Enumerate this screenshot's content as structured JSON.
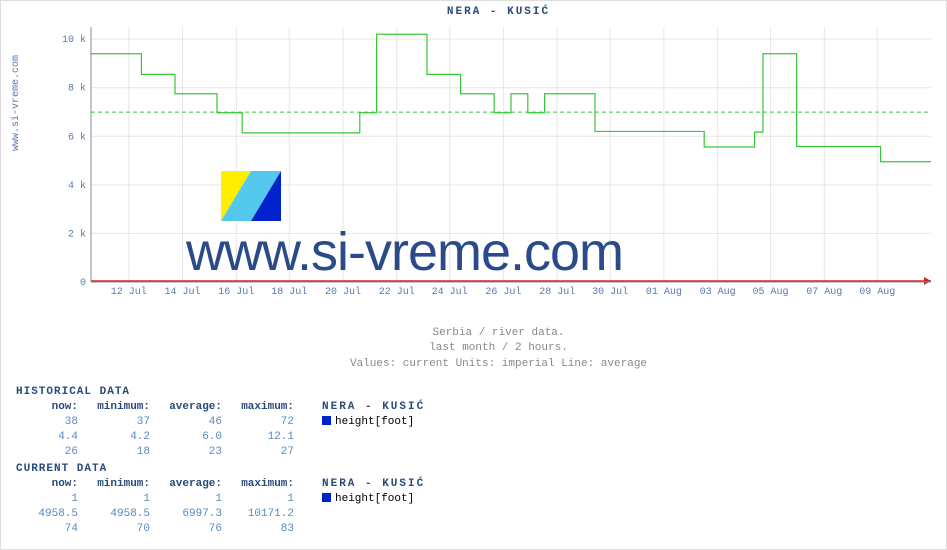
{
  "vertical_label": "www.si-vreme.com",
  "chart": {
    "title": "NERA -  KUSIĆ",
    "type": "line",
    "ylim": [
      0,
      10500
    ],
    "yticks": [
      0,
      2000,
      4000,
      6000,
      8000,
      10000
    ],
    "ytick_labels": [
      "0",
      "2 k",
      "4 k",
      "6 k",
      "8 k",
      "10 k"
    ],
    "xtick_labels": [
      "12 Jul",
      "14 Jul",
      "16 Jul",
      "18 Jul",
      "20 Jul",
      "22 Jul",
      "24 Jul",
      "26 Jul",
      "28 Jul",
      "30 Jul",
      "01 Aug",
      "03 Aug",
      "05 Aug",
      "07 Aug",
      "09 Aug"
    ],
    "xtick_positions_pct": [
      4.5,
      10.9,
      17.3,
      23.6,
      30,
      36.4,
      42.7,
      49.1,
      55.5,
      61.8,
      68.2,
      74.6,
      80.9,
      87.3,
      93.6
    ],
    "average_line_value": 6997,
    "average_line_color": "#39c639",
    "series_color": "#39c639",
    "red_line_color": "#c62828",
    "grid_color": "#e6e6e6",
    "axis_label_color": "#5a7aa8",
    "background_color": "#ffffff",
    "font_family": "Courier New, monospace",
    "series_points": [
      [
        0,
        9400
      ],
      [
        6,
        9400
      ],
      [
        6,
        8550
      ],
      [
        10,
        8550
      ],
      [
        10,
        7750
      ],
      [
        15,
        7750
      ],
      [
        15,
        6970
      ],
      [
        18,
        6970
      ],
      [
        18,
        6140
      ],
      [
        32,
        6140
      ],
      [
        32,
        6970
      ],
      [
        34,
        6970
      ],
      [
        34,
        10200
      ],
      [
        40,
        10200
      ],
      [
        40,
        8550
      ],
      [
        44,
        8550
      ],
      [
        44,
        7750
      ],
      [
        48,
        7750
      ],
      [
        48,
        6970
      ],
      [
        50,
        6970
      ],
      [
        50,
        7750
      ],
      [
        52,
        7750
      ],
      [
        52,
        6970
      ],
      [
        54,
        6970
      ],
      [
        54,
        7750
      ],
      [
        60,
        7750
      ],
      [
        60,
        6200
      ],
      [
        73,
        6200
      ],
      [
        73,
        5560
      ],
      [
        79,
        5560
      ],
      [
        79,
        6170
      ],
      [
        80,
        6170
      ],
      [
        80,
        9400
      ],
      [
        84,
        9400
      ],
      [
        84,
        5580
      ],
      [
        94,
        5580
      ],
      [
        94,
        4950
      ],
      [
        100,
        4950
      ]
    ]
  },
  "caption": {
    "line1": "Serbia / river data.",
    "line2": "last month / 2 hours.",
    "line3": "Values: current  Units: imperial  Line: average"
  },
  "watermark": {
    "text": "www.si-vreme.com",
    "icon_colors": {
      "yellow": "#ffee00",
      "cyan": "#55c8ee",
      "blue": "#0022cc"
    }
  },
  "tables": {
    "columns": [
      "now:",
      "minimum:",
      "average:",
      "maximum:"
    ],
    "historical": {
      "header": "HISTORICAL DATA",
      "station": "NERA -  KUSIĆ",
      "legend_color": "#0022cc",
      "unit": "height[foot]",
      "rows": [
        [
          "38",
          "37",
          "46",
          "72"
        ],
        [
          "4.4",
          "4.2",
          "6.0",
          "12.1"
        ],
        [
          "26",
          "18",
          "23",
          "27"
        ]
      ]
    },
    "current": {
      "header": "CURRENT DATA",
      "station": "NERA -  KUSIĆ",
      "legend_color": "#0022cc",
      "unit": "height[foot]",
      "rows": [
        [
          "1",
          "1",
          "1",
          "1"
        ],
        [
          "4958.5",
          "4958.5",
          "6997.3",
          "10171.2"
        ],
        [
          "74",
          "70",
          "76",
          "83"
        ]
      ]
    }
  }
}
